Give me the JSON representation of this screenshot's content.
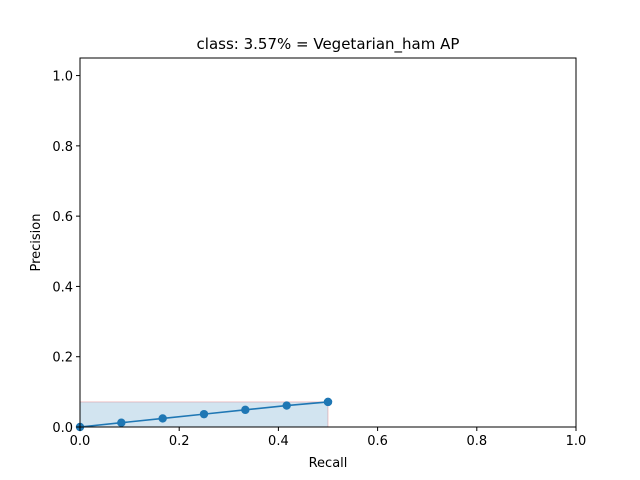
{
  "chart_data": {
    "type": "line",
    "title": "class: 3.57% = Vegetarian_ham AP",
    "xlabel": "Recall",
    "ylabel": "Precision",
    "xlim": [
      0.0,
      1.0
    ],
    "ylim": [
      0.0,
      1.05
    ],
    "xticks": [
      "0.0",
      "0.2",
      "0.4",
      "0.6",
      "0.8",
      "1.0"
    ],
    "yticks": [
      "0.0",
      "0.2",
      "0.4",
      "0.6",
      "0.8",
      "1.0"
    ],
    "grid": false,
    "legend": "none",
    "series": [
      {
        "x": [
          0.0,
          0.0833,
          0.1667,
          0.25,
          0.3333,
          0.4167,
          0.5,
          0.5
        ],
        "y": [
          0.0,
          0.0122,
          0.0244,
          0.0366,
          0.0488,
          0.061,
          0.0714,
          0.0714
        ],
        "color": "#1f77b4",
        "marker": "circle"
      }
    ],
    "fill_area": {
      "x": [
        0.0,
        0.5
      ],
      "y": 0.0714,
      "fill_color": "#1f77b4",
      "edge_color": "#d62728"
    }
  }
}
